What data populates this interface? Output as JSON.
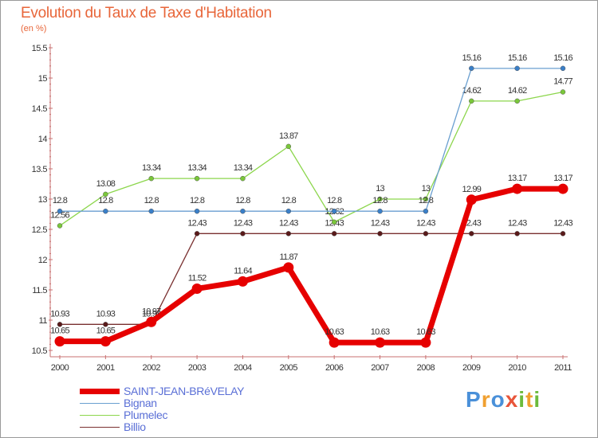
{
  "title": "Evolution du Taux de Taxe d'Habitation",
  "subtitle": "(en %)",
  "logo": {
    "letters": [
      "P",
      "r",
      "o",
      "x",
      "i",
      "t",
      "i"
    ],
    "colors": [
      "#4a90d9",
      "#f0a030",
      "#4a90d9",
      "#e8553a",
      "#6cbb3c",
      "#f0a030",
      "#6cbb3c"
    ]
  },
  "chart_data": {
    "type": "line",
    "title": "Evolution du Taux de Taxe d'Habitation",
    "ylabel": "(en %)",
    "xlabel": "",
    "ylim": [
      10.5,
      15.5
    ],
    "yticks": [
      "10.5",
      "11",
      "11.5",
      "12",
      "12.5",
      "13",
      "13.5",
      "14",
      "14.5",
      "15",
      "15.5"
    ],
    "x": [
      "2000",
      "2001",
      "2002",
      "2003",
      "2004",
      "2005",
      "2006",
      "2007",
      "2008",
      "2009",
      "2010",
      "2011"
    ],
    "series": [
      {
        "name": "Billio",
        "color": "#7a3030",
        "width": 1.3,
        "values": [
          10.93,
          10.93,
          10.93,
          12.43,
          12.43,
          12.43,
          12.43,
          12.43,
          12.43,
          12.43,
          12.43,
          12.43
        ],
        "labels": [
          "10.93",
          "10.93",
          "10.93",
          "12.43",
          "12.43",
          "12.43",
          "12.43",
          "12.43",
          "12.43",
          "12.43",
          "12.43",
          "12.43"
        ]
      },
      {
        "name": "Plumelec",
        "color": "#8cd64c",
        "width": 1.3,
        "values": [
          12.56,
          13.08,
          13.34,
          13.34,
          13.34,
          13.87,
          12.62,
          13,
          13,
          14.62,
          14.62,
          14.77
        ],
        "labels": [
          "12.56",
          "13.08",
          "13.34",
          "13.34",
          "13.34",
          "13.87",
          "12.62",
          "13",
          "13",
          "14.62",
          "14.62",
          "14.77"
        ]
      },
      {
        "name": "Bignan",
        "color": "#6a9fd0",
        "width": 1.3,
        "values": [
          12.8,
          12.8,
          12.8,
          12.8,
          12.8,
          12.8,
          12.8,
          12.8,
          12.8,
          15.16,
          15.16,
          15.16
        ],
        "labels": [
          "12.8",
          "12.8",
          "12.8",
          "12.8",
          "12.8",
          "12.8",
          "12.8",
          "12.8",
          "12.8",
          "15.16",
          "15.16",
          "15.16"
        ]
      },
      {
        "name": "SAINT-JEAN-BRéVELAY",
        "color": "#e60000",
        "width": 7,
        "values": [
          10.65,
          10.65,
          10.97,
          11.52,
          11.64,
          11.87,
          10.63,
          10.63,
          10.63,
          12.99,
          13.17,
          13.17
        ],
        "labels": [
          "10.65",
          "10.65",
          "10.97",
          "11.52",
          "11.64",
          "11.87",
          "10.63",
          "10.63",
          "10.63",
          "12.99",
          "13.17",
          "13.17"
        ]
      }
    ],
    "legend_order": [
      "SAINT-JEAN-BRéVELAY",
      "Bignan",
      "Plumelec",
      "Billio"
    ],
    "grid": false,
    "legend_position": "bottom-left"
  }
}
